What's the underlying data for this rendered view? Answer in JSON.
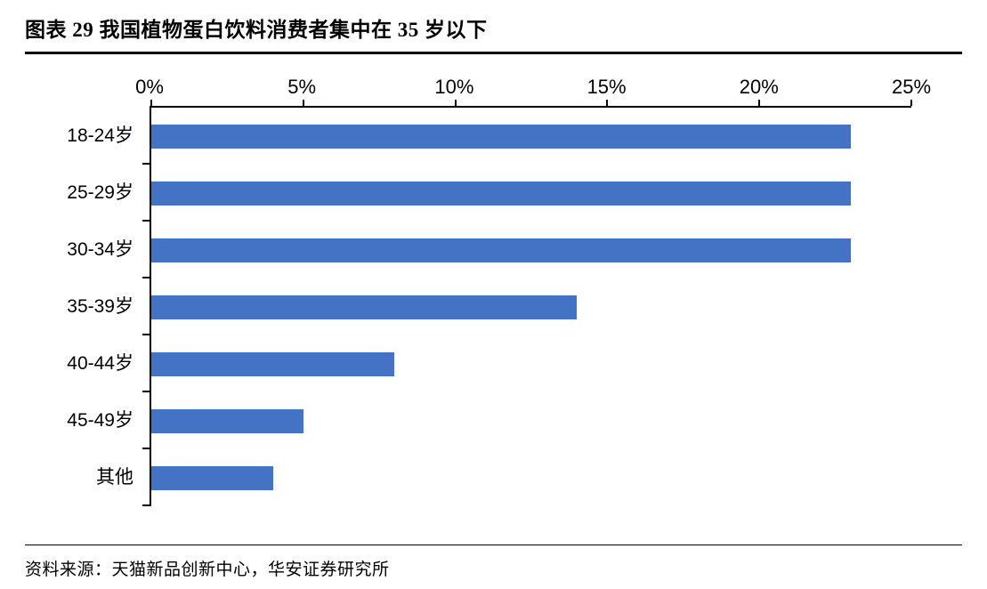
{
  "header": {
    "title": "图表 29  我国植物蛋白饮料消费者集中在 35 岁以下"
  },
  "footer": {
    "source": "资料来源：天猫新品创新中心，华安证券研究所"
  },
  "chart_data": {
    "type": "bar",
    "orientation": "horizontal",
    "title": "我国植物蛋白饮料消费者集中在 35 岁以下",
    "categories": [
      "18-24岁",
      "25-29岁",
      "30-34岁",
      "35-39岁",
      "40-44岁",
      "45-49岁",
      "其他"
    ],
    "values": [
      23,
      23,
      23,
      14,
      8,
      5,
      4
    ],
    "unit": "%",
    "x_ticks": [
      "0%",
      "5%",
      "10%",
      "15%",
      "20%",
      "25%"
    ],
    "xlim": [
      0,
      25
    ],
    "bar_color": "#4472C4",
    "axis_color": "#000000",
    "grid": false,
    "legend": false
  }
}
